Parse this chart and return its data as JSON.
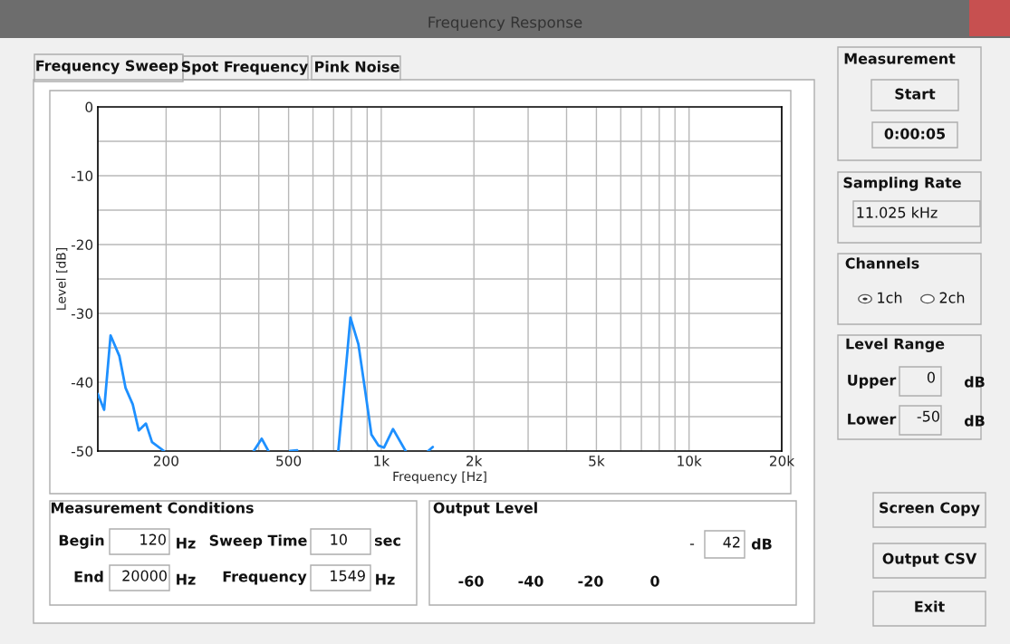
{
  "chart_data": {
    "type": "line",
    "title": "Frequency Response",
    "xlabel": "Frequency [Hz]",
    "ylabel": "Level [dB]",
    "log": "x",
    "xlim": [
      120,
      20000
    ],
    "ylim": [
      -50,
      0
    ],
    "xticks": [
      {
        "value": 200,
        "label": "200"
      },
      {
        "value": 300,
        "label": null
      },
      {
        "value": 400,
        "label": null
      },
      {
        "value": 500,
        "label": "500"
      },
      {
        "value": 600,
        "label": null
      },
      {
        "value": 700,
        "label": null
      },
      {
        "value": 800,
        "label": null
      },
      {
        "value": 900,
        "label": null
      },
      {
        "value": 1000,
        "label": "1k"
      },
      {
        "value": 2000,
        "label": "2k"
      },
      {
        "value": 3000,
        "label": null
      },
      {
        "value": 4000,
        "label": null
      },
      {
        "value": 5000,
        "label": "5k"
      },
      {
        "value": 6000,
        "label": null
      },
      {
        "value": 7000,
        "label": null
      },
      {
        "value": 8000,
        "label": null
      },
      {
        "value": 9000,
        "label": null
      },
      {
        "value": 10000,
        "label": "10k"
      },
      {
        "value": 20000,
        "label": "20k"
      }
    ],
    "yticks": [
      0,
      {
        "value": -5,
        "label": null
      },
      -10,
      {
        "value": -15,
        "label": null
      },
      -20,
      {
        "value": -25,
        "label": null
      },
      -30,
      {
        "value": -35,
        "label": null
      },
      -40,
      {
        "value": -45,
        "label": null
      },
      -50
    ],
    "grid": true,
    "marker": "none",
    "line_style": "solid",
    "series": [
      {
        "color": "#1e90ff",
        "x": [
          120,
          125.8,
          132,
          141,
          147.6,
          155.8,
          163,
          172,
          180,
          197,
          200,
          385,
          409,
          430,
          440,
          505,
          533,
          540,
          725,
          776,
          794,
          843,
          885,
          929,
          980,
          1021,
          1092,
          1200,
          1300,
          1420,
          1470
        ],
        "values": [
          -41.7,
          -44,
          -33.2,
          -36.2,
          -40.8,
          -43.2,
          -47,
          -46,
          -48.7,
          -50,
          null,
          -50,
          -48.2,
          -50,
          null,
          -50,
          -49.9,
          null,
          -50,
          -35.6,
          -30.6,
          -34.5,
          -41,
          -47.6,
          -49.2,
          -49.5,
          -46.8,
          -50,
          null,
          -50,
          -49.4
        ]
      }
    ],
    "annotations": [
      "Frequency Sweep",
      "Spot Frequency",
      "Pink Noise",
      "Measurement",
      "Start",
      "0:00:05",
      "Sampling Rate",
      "11.025 kHz",
      "Channels",
      "1ch",
      "2ch",
      "Level Range",
      "Upper",
      "0",
      "dB",
      "Lower",
      "-50",
      "dB",
      "Measurement Conditions",
      "Begin",
      "120",
      "Hz",
      "Sweep Time",
      "10",
      "sec",
      "End",
      "20000",
      "Hz",
      "Frequency",
      "1549",
      "Hz",
      "Output Level",
      "-",
      "42",
      "dB",
      "-60",
      "-40",
      "-20",
      "0",
      "Screen Copy",
      "Output CSV",
      "Exit"
    ]
  }
}
